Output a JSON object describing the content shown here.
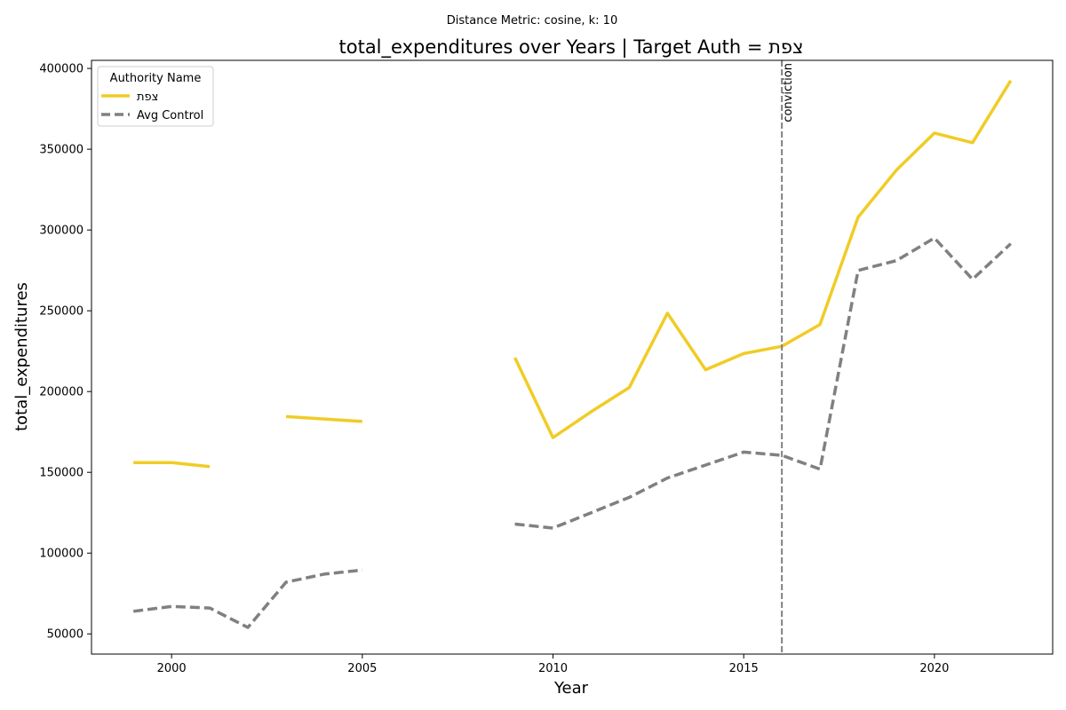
{
  "chart_data": {
    "type": "line",
    "suptitle": "Distance Metric: cosine, k: 10",
    "title": "total_expenditures over Years | Target Auth = צפת",
    "xlabel": "Year",
    "ylabel": "total_expenditures",
    "xlim": [
      1997.9,
      2023.1
    ],
    "ylim": [
      37500,
      405000
    ],
    "x_ticks": [
      2000,
      2005,
      2010,
      2015,
      2020
    ],
    "y_ticks": [
      50000,
      100000,
      150000,
      200000,
      250000,
      300000,
      350000,
      400000
    ],
    "grid": false,
    "legend": {
      "title": "Authority Name",
      "placement": "top-left"
    },
    "x": [
      1999,
      2000,
      2001,
      2002,
      2003,
      2004,
      2005,
      2006,
      2007,
      2008,
      2009,
      2010,
      2011,
      2012,
      2013,
      2014,
      2015,
      2016,
      2017,
      2018,
      2019,
      2020,
      2021,
      2022
    ],
    "series": [
      {
        "name": "צפת",
        "style": "solid",
        "color": "#f0cc26",
        "values": [
          156000,
          156000,
          153500,
          null,
          184500,
          183000,
          181500,
          null,
          null,
          null,
          221000,
          171500,
          187500,
          202500,
          248500,
          213500,
          223500,
          228000,
          241500,
          308000,
          337000,
          360000,
          354000,
          392500
        ]
      },
      {
        "name": "Avg Control",
        "style": "dashed",
        "color": "#808080",
        "values": [
          64000,
          67000,
          66000,
          54000,
          82000,
          87000,
          89500,
          null,
          null,
          null,
          118000,
          115500,
          125000,
          134500,
          146500,
          154500,
          162500,
          160500,
          152000,
          275000,
          281000,
          295000,
          269500,
          291500
        ]
      }
    ],
    "annotations": [
      {
        "type": "vline",
        "x": 2016,
        "label": "conviction",
        "color": "#808080",
        "style": "dashed"
      }
    ]
  }
}
